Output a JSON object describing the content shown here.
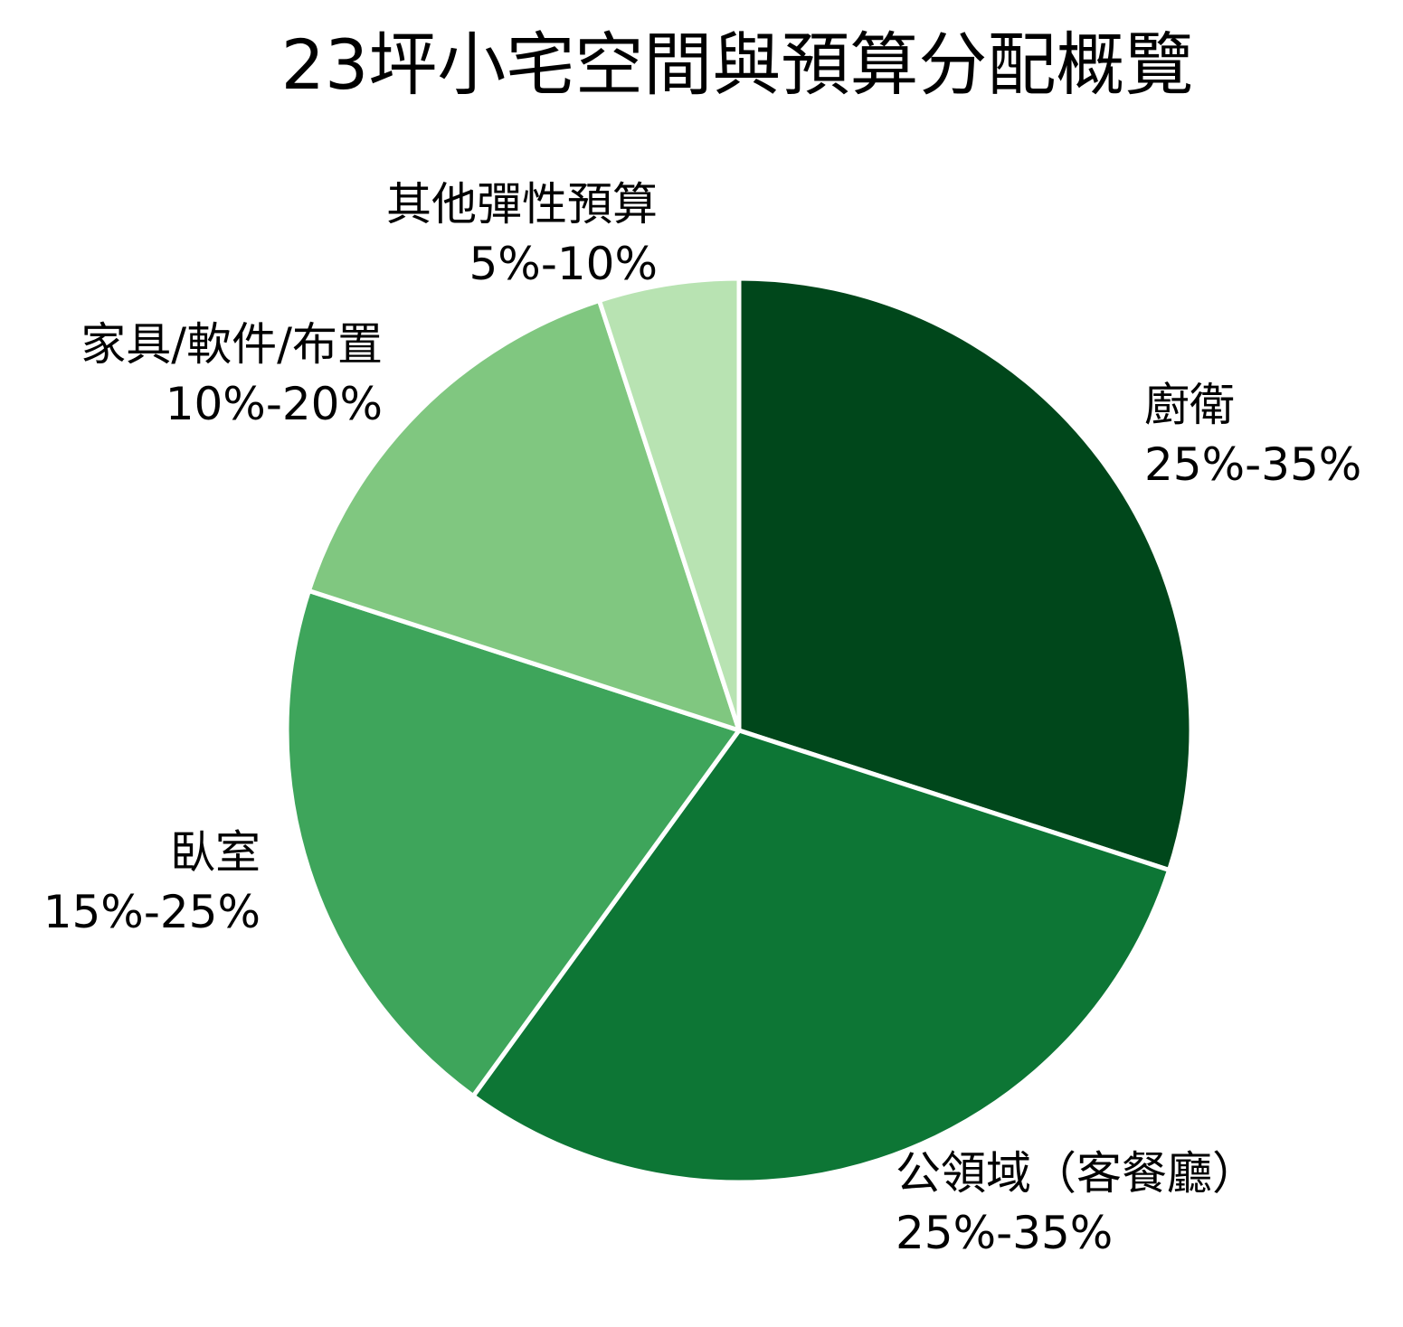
{
  "chart_data": {
    "type": "pie",
    "title": "23坪小宅空間與預算分配概覽",
    "start_angle_deg": 90,
    "direction": "clockwise",
    "slices": [
      {
        "name": "廚衛",
        "range": "25%-35%",
        "value": 30,
        "color": "#00471b"
      },
      {
        "name": "公領域（客餐廳）",
        "range": "25%-35%",
        "value": 30,
        "color": "#0d7635"
      },
      {
        "name": "臥室",
        "range": "15%-25%",
        "value": 20,
        "color": "#3ea55b"
      },
      {
        "name": "家具/軟件/布置",
        "range": "10%-20%",
        "value": 15,
        "color": "#80c780"
      },
      {
        "name": "其他彈性預算",
        "range": "5%-10%",
        "value": 5,
        "color": "#b8e3b2"
      }
    ],
    "legend": "none"
  }
}
